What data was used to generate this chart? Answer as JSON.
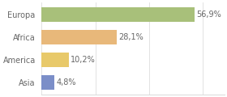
{
  "categories": [
    "Asia",
    "America",
    "Africa",
    "Europa"
  ],
  "values": [
    4.8,
    10.2,
    28.1,
    56.9
  ],
  "bar_colors": [
    "#7b8ec8",
    "#e8c96a",
    "#e8b87a",
    "#a8c07a"
  ],
  "labels": [
    "4,8%",
    "10,2%",
    "28,1%",
    "56,9%"
  ],
  "xlim": [
    0,
    68
  ],
  "bar_height": 0.65,
  "background_color": "#ffffff",
  "text_color": "#666666",
  "label_fontsize": 7.0,
  "tick_fontsize": 7.0,
  "grid_color": "#dddddd",
  "grid_ticks": [
    0,
    20,
    40,
    60
  ]
}
